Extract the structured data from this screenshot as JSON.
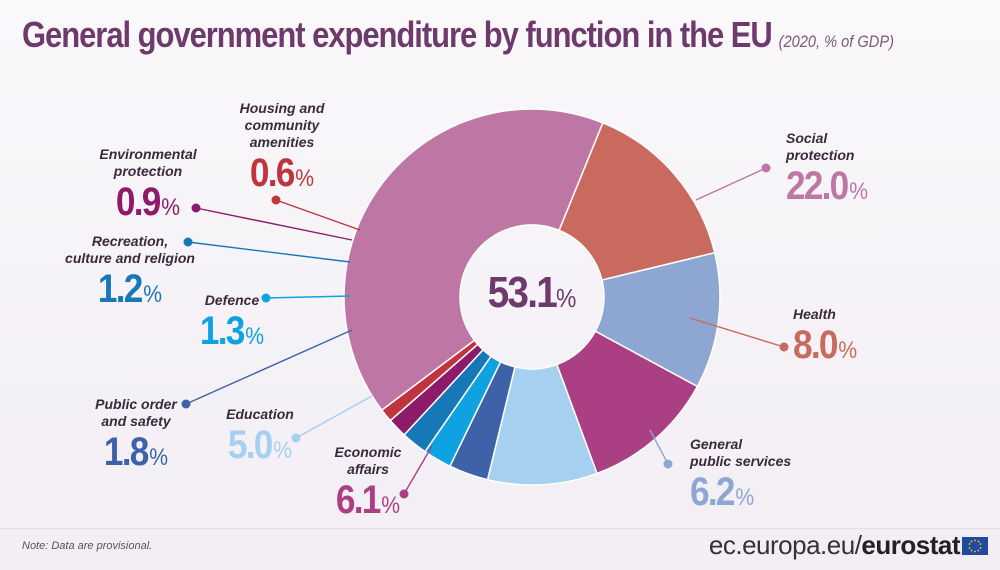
{
  "header": {
    "title": "General government expenditure by function in the EU",
    "subtitle": "(2020, % of GDP)"
  },
  "chart_data": {
    "type": "pie",
    "title": "General government expenditure by function in the EU",
    "subtitle": "(2020, % of GDP)",
    "total": "53.1",
    "unit": "%",
    "segments": [
      {
        "name": "Social protection",
        "value": 22.0,
        "value_text": "22.0",
        "color": "#be76a5"
      },
      {
        "name": "Health",
        "value": 8.0,
        "value_text": "8.0",
        "color": "#c86a5e"
      },
      {
        "name": "General public services",
        "value": 6.2,
        "value_text": "6.2",
        "color": "#8ea6d2"
      },
      {
        "name": "Economic affairs",
        "value": 6.1,
        "value_text": "6.1",
        "color": "#ab3f84"
      },
      {
        "name": "Education",
        "value": 5.0,
        "value_text": "5.0",
        "color": "#a6d0ef"
      },
      {
        "name": "Public order and safety",
        "value": 1.8,
        "value_text": "1.8",
        "color": "#3e62a8"
      },
      {
        "name": "Defence",
        "value": 1.3,
        "value_text": "1.3",
        "color": "#0ea3e0"
      },
      {
        "name": "Recreation, culture and religion",
        "value": 1.2,
        "value_text": "1.2",
        "color": "#1778b8"
      },
      {
        "name": "Environmental protection",
        "value": 0.9,
        "value_text": "0.9",
        "color": "#8e1a6a"
      },
      {
        "name": "Housing and community amenities",
        "value": 0.6,
        "value_text": "0.6",
        "color": "#c0343f"
      }
    ],
    "labels": {
      "social": [
        "Social",
        "protection"
      ],
      "health": [
        "Health"
      ],
      "gps": [
        "General",
        "public services"
      ],
      "econ": [
        "Economic",
        "affairs"
      ],
      "edu": [
        "Education"
      ],
      "order": [
        "Public order",
        "and safety"
      ],
      "defence": [
        "Defence"
      ],
      "recreation": [
        "Recreation,",
        "culture and religion"
      ],
      "env": [
        "Environmental",
        "protection"
      ],
      "housing": [
        "Housing and",
        "community",
        "amenities"
      ]
    }
  },
  "footer": {
    "note": "Note: Data are provisional.",
    "site_prefix": "ec.europa.eu/",
    "site_brand": "eurostat"
  }
}
